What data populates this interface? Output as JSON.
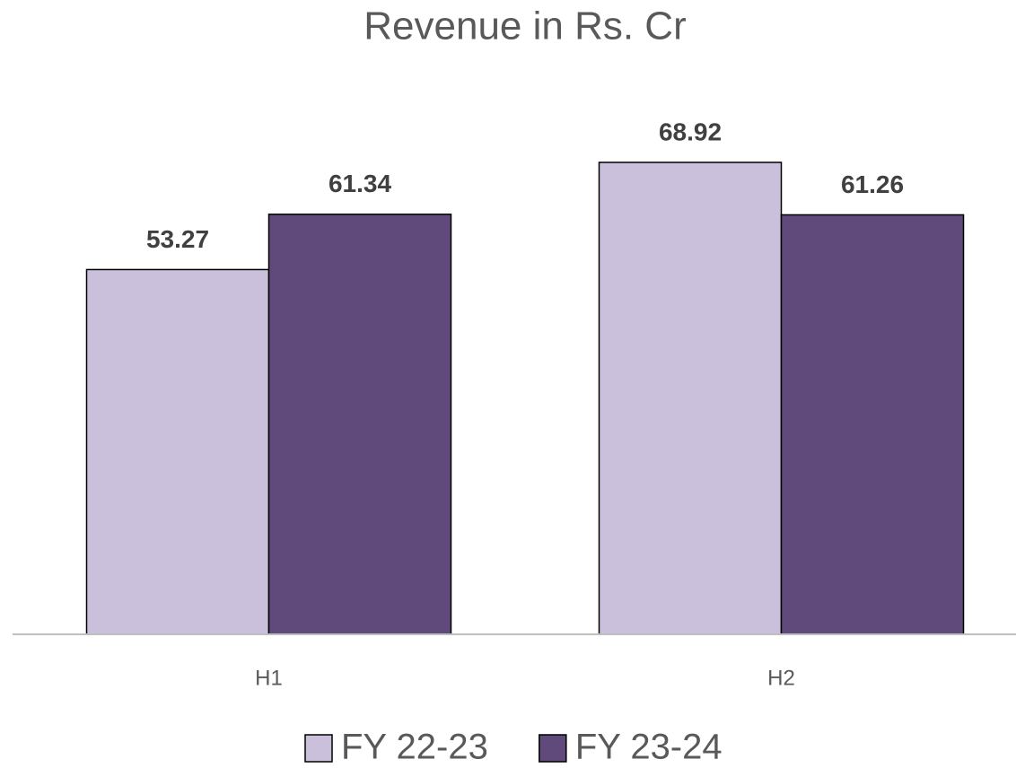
{
  "chart_data": {
    "type": "bar",
    "title": "Revenue in Rs. Cr",
    "categories": [
      "H1",
      "H2"
    ],
    "series": [
      {
        "name": "FY 22-23",
        "color": "#cbc0dc",
        "values": [
          53.27,
          68.92
        ]
      },
      {
        "name": "FY 23-24",
        "color": "#604a7b",
        "values": [
          61.34,
          61.26
        ]
      }
    ],
    "legend": "bottom"
  }
}
